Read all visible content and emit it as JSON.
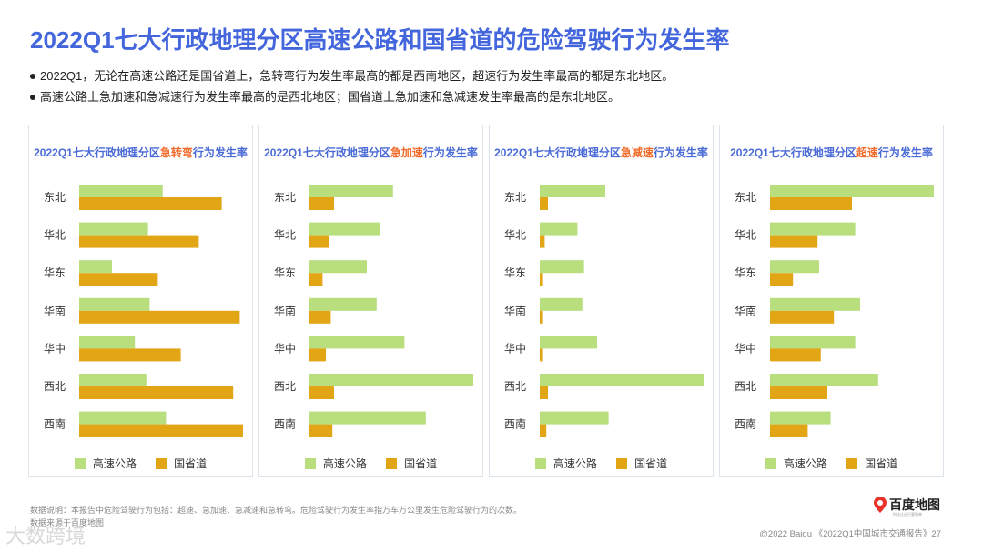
{
  "title": "2022Q1七大行政地理分区高速公路和国省道的危险驾驶行为发生率",
  "bullets": [
    "2022Q1，无论在高速公路还是国省道上，急转弯行为发生率最高的都是西南地区，超速行为发生率最高的都是东北地区。",
    "高速公路上急加速和急减速行为发生率最高的是西北地区；国省道上急加速和急减速发生率最高的是东北地区。"
  ],
  "colors": {
    "highway": "#b8de7e",
    "national": "#e2a516",
    "title": "#4466dd",
    "highlight": "#f06a2a"
  },
  "legend": {
    "highway": "高速公路",
    "national": "国省道"
  },
  "chart_data": [
    {
      "type": "bar",
      "orientation": "horizontal",
      "title_prefix": "2022Q1七大行政地理分区",
      "title_highlight": "急转弯",
      "title_suffix": "行为发生率",
      "categories": [
        "东北",
        "华北",
        "华东",
        "华南",
        "华中",
        "西北",
        "西南"
      ],
      "series": [
        {
          "name": "高速公路",
          "values": [
            51,
            42,
            20,
            43,
            34,
            41,
            53
          ]
        },
        {
          "name": "国省道",
          "values": [
            87,
            73,
            48,
            98,
            62,
            94,
            100
          ]
        }
      ],
      "xlim": [
        0,
        100
      ],
      "legend_position": "bottom"
    },
    {
      "type": "bar",
      "orientation": "horizontal",
      "title_prefix": "2022Q1七大行政地理分区",
      "title_highlight": "急加速",
      "title_suffix": "行为发生率",
      "categories": [
        "东北",
        "华北",
        "华东",
        "华南",
        "华中",
        "西北",
        "西南"
      ],
      "series": [
        {
          "name": "高速公路",
          "values": [
            51,
            43,
            35,
            41,
            58,
            100,
            71
          ]
        },
        {
          "name": "国省道",
          "values": [
            15,
            12,
            8,
            13,
            10,
            15,
            14
          ]
        }
      ],
      "xlim": [
        0,
        100
      ],
      "legend_position": "bottom"
    },
    {
      "type": "bar",
      "orientation": "horizontal",
      "title_prefix": "2022Q1七大行政地理分区",
      "title_highlight": "急减速",
      "title_suffix": "行为发生率",
      "categories": [
        "东北",
        "华北",
        "华东",
        "华南",
        "华中",
        "西北",
        "西南"
      ],
      "series": [
        {
          "name": "高速公路",
          "values": [
            40,
            23,
            27,
            26,
            35,
            100,
            42
          ]
        },
        {
          "name": "国省道",
          "values": [
            5,
            3,
            2,
            2,
            2,
            5,
            4
          ]
        }
      ],
      "xlim": [
        0,
        100
      ],
      "legend_position": "bottom"
    },
    {
      "type": "bar",
      "orientation": "horizontal",
      "title_prefix": "2022Q1七大行政地理分区",
      "title_highlight": "超速",
      "title_suffix": "行为发生率",
      "categories": [
        "东北",
        "华北",
        "华东",
        "华南",
        "华中",
        "西北",
        "西南"
      ],
      "series": [
        {
          "name": "高速公路",
          "values": [
            100,
            52,
            30,
            55,
            52,
            66,
            37
          ]
        },
        {
          "name": "国省道",
          "values": [
            50,
            29,
            14,
            39,
            31,
            35,
            23
          ]
        }
      ],
      "xlim": [
        0,
        100
      ],
      "legend_position": "bottom"
    }
  ],
  "footnote": [
    "数据说明：本报告中危险驾驶行为包括：超速、急加速、急减速和急转弯。危险驾驶行为发生率指万车万公里发生危险驾驶行为的次数。",
    "数据来源于百度地图"
  ],
  "watermark": "大数跨境",
  "footer_right": "@2022 Baidu 《2022Q1中国城市交通报告》27",
  "logo": {
    "name": "百度地图",
    "tagline": "科技让出行更简单",
    "icon": "map-pin-icon"
  }
}
